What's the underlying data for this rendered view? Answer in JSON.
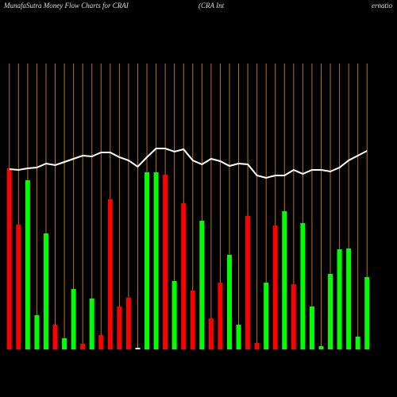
{
  "chart_data": {
    "type": "bar",
    "title": "MunafaSutra  Money Flow  Charts for CRAI",
    "subtitle": "(CRA Int",
    "subtitle_right": "ernatio",
    "categories": [
      null,
      null,
      null,
      null,
      null,
      null,
      null,
      null,
      null,
      null,
      null,
      null,
      null,
      null,
      null,
      null,
      null,
      null,
      null,
      null,
      null,
      null,
      null,
      null,
      null,
      null,
      null,
      null,
      null,
      null,
      null,
      null,
      null,
      null,
      null,
      null,
      null,
      null,
      null,
      null
    ],
    "values": [
      228,
      157,
      213,
      43,
      146,
      31,
      14,
      76,
      7,
      64,
      18,
      189,
      54,
      65,
      2,
      223,
      223,
      220,
      86,
      184,
      74,
      162,
      39,
      84,
      119,
      31,
      168,
      8,
      84,
      156,
      174,
      82,
      159,
      54,
      4,
      95,
      126,
      127,
      16,
      91
    ],
    "colors": [
      "#ff0000",
      "#ff0000",
      "#00ff00",
      "#00ff00",
      "#00ff00",
      "#ff0000",
      "#00ff00",
      "#00ff00",
      "#ff0000",
      "#00ff00",
      "#ff0000",
      "#ff0000",
      "#ff0000",
      "#ff0000",
      "#ffffff",
      "#00ff00",
      "#00ff00",
      "#ff0000",
      "#00ff00",
      "#ff0000",
      "#ff0000",
      "#00ff00",
      "#ff0000",
      "#ff0000",
      "#00ff00",
      "#00ff00",
      "#ff0000",
      "#ff0000",
      "#00ff00",
      "#ff0000",
      "#00ff00",
      "#ff0000",
      "#00ff00",
      "#00ff00",
      "#00ff00",
      "#00ff00",
      "#00ff00",
      "#00ff00",
      "#00ff00",
      "#00ff00"
    ],
    "line_values": [
      227,
      226,
      228,
      229,
      234,
      232,
      236,
      240,
      244,
      243,
      248,
      248,
      242,
      238,
      230,
      242,
      253,
      253,
      249,
      252,
      238,
      233,
      240,
      237,
      231,
      234,
      233,
      219,
      216,
      219,
      219,
      226,
      221,
      226,
      226,
      224,
      229,
      238,
      244,
      250
    ],
    "line_color": "#ffffff",
    "grid_color": "#b8741a",
    "ylim": [
      0,
      360
    ]
  }
}
